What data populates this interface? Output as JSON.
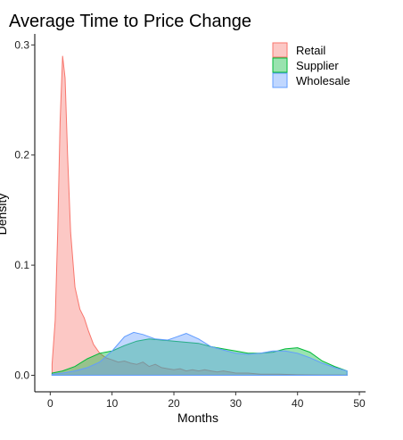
{
  "chart_data": {
    "type": "area",
    "title": "Average Time to Price Change",
    "xlabel": "Months",
    "ylabel": "Density",
    "xlim": [
      -2.5,
      51
    ],
    "ylim": [
      -0.015,
      0.31
    ],
    "x_ticks": [
      0,
      10,
      20,
      30,
      40,
      50
    ],
    "x_tick_labels": [
      "0",
      "10",
      "20",
      "30",
      "40",
      "50"
    ],
    "y_ticks": [
      0,
      0.1,
      0.2,
      0.3
    ],
    "y_tick_labels": [
      "0.0",
      "0.1",
      "0.2",
      "0.3"
    ],
    "grid": false,
    "legend_position": "top-right",
    "series": [
      {
        "name": "Retail",
        "stroke": "#f8766d",
        "fill": "#f8766d",
        "points": [
          [
            0.3,
            0.01
          ],
          [
            0.8,
            0.05
          ],
          [
            1.2,
            0.13
          ],
          [
            1.6,
            0.23
          ],
          [
            2.0,
            0.29
          ],
          [
            2.4,
            0.27
          ],
          [
            2.8,
            0.2
          ],
          [
            3.3,
            0.13
          ],
          [
            4.0,
            0.08
          ],
          [
            4.8,
            0.06
          ],
          [
            5.5,
            0.052
          ],
          [
            6.2,
            0.04
          ],
          [
            7.0,
            0.028
          ],
          [
            8.0,
            0.02
          ],
          [
            9.0,
            0.016
          ],
          [
            10.0,
            0.014
          ],
          [
            11.0,
            0.012
          ],
          [
            12.0,
            0.013
          ],
          [
            13.0,
            0.011
          ],
          [
            14.0,
            0.01
          ],
          [
            15.0,
            0.012
          ],
          [
            16.0,
            0.008
          ],
          [
            17.0,
            0.01
          ],
          [
            18.0,
            0.007
          ],
          [
            19.0,
            0.006
          ],
          [
            20.0,
            0.005
          ],
          [
            21.0,
            0.006
          ],
          [
            22.0,
            0.004
          ],
          [
            23.0,
            0.005
          ],
          [
            24.0,
            0.004
          ],
          [
            25.0,
            0.005
          ],
          [
            26.0,
            0.004
          ],
          [
            27.0,
            0.003
          ],
          [
            28.0,
            0.004
          ],
          [
            29.0,
            0.003
          ],
          [
            30.0,
            0.002
          ],
          [
            32.0,
            0.002
          ],
          [
            34.0,
            0.001
          ],
          [
            37.0,
            0.001
          ],
          [
            40.0,
            0.0005
          ],
          [
            44.0,
            0.0003
          ],
          [
            48.0,
            0.0002
          ]
        ]
      },
      {
        "name": "Supplier",
        "stroke": "#00ba38",
        "fill": "#00ba38",
        "points": [
          [
            0.3,
            0.002
          ],
          [
            2.0,
            0.004
          ],
          [
            4.0,
            0.008
          ],
          [
            6.0,
            0.015
          ],
          [
            8.0,
            0.02
          ],
          [
            10.0,
            0.022
          ],
          [
            12.0,
            0.027
          ],
          [
            14.0,
            0.031
          ],
          [
            16.0,
            0.033
          ],
          [
            18.0,
            0.032
          ],
          [
            20.0,
            0.031
          ],
          [
            22.0,
            0.03
          ],
          [
            24.0,
            0.029
          ],
          [
            26.0,
            0.026
          ],
          [
            28.0,
            0.024
          ],
          [
            30.0,
            0.022
          ],
          [
            32.0,
            0.02
          ],
          [
            34.0,
            0.02
          ],
          [
            36.0,
            0.021
          ],
          [
            38.0,
            0.024
          ],
          [
            40.0,
            0.025
          ],
          [
            42.0,
            0.021
          ],
          [
            44.0,
            0.013
          ],
          [
            46.0,
            0.008
          ],
          [
            48.0,
            0.004
          ]
        ]
      },
      {
        "name": "Wholesale",
        "stroke": "#619cff",
        "fill": "#619cff",
        "points": [
          [
            0.3,
            0.001
          ],
          [
            2.0,
            0.002
          ],
          [
            4.0,
            0.004
          ],
          [
            6.0,
            0.007
          ],
          [
            8.0,
            0.012
          ],
          [
            10.0,
            0.022
          ],
          [
            12.0,
            0.035
          ],
          [
            13.5,
            0.039
          ],
          [
            15.0,
            0.037
          ],
          [
            17.0,
            0.033
          ],
          [
            19.0,
            0.032
          ],
          [
            20.5,
            0.035
          ],
          [
            22.0,
            0.038
          ],
          [
            24.0,
            0.033
          ],
          [
            26.0,
            0.026
          ],
          [
            28.0,
            0.023
          ],
          [
            30.0,
            0.02
          ],
          [
            32.0,
            0.019
          ],
          [
            34.0,
            0.02
          ],
          [
            36.0,
            0.022
          ],
          [
            38.0,
            0.022
          ],
          [
            40.0,
            0.02
          ],
          [
            42.0,
            0.016
          ],
          [
            44.0,
            0.011
          ],
          [
            46.0,
            0.007
          ],
          [
            48.0,
            0.004
          ]
        ]
      }
    ]
  }
}
